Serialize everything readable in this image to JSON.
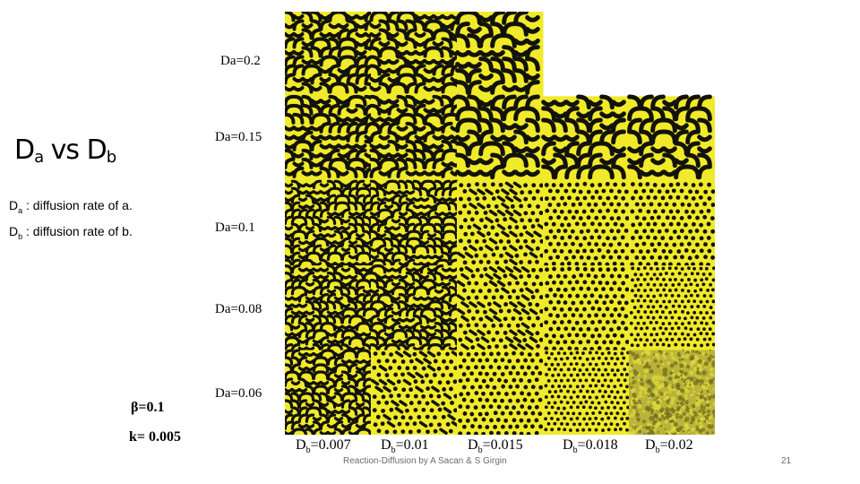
{
  "title": {
    "main": "D",
    "sub_a": "a",
    "vs": " vs D",
    "sub_b": "b"
  },
  "definitions": [
    {
      "symbol": "D",
      "sub": "a",
      "text": " : diffusion rate of a."
    },
    {
      "symbol": "D",
      "sub": "b",
      "text": " : diffusion rate of b."
    }
  ],
  "da_labels": [
    "Da=0.2",
    "Da=0.15",
    "Da=0.1",
    "Da=0.08",
    "Da=0.06"
  ],
  "db_labels": [
    {
      "prefix": "D",
      "sub": "b",
      "value": "=0.007"
    },
    {
      "prefix": "D",
      "sub": "b",
      "value": "=0.01"
    },
    {
      "prefix": "D",
      "sub": "b",
      "value": "=0.015"
    },
    {
      "prefix": "D",
      "sub": "b",
      "value": "=0.018"
    },
    {
      "prefix": "D",
      "sub": "b",
      "value": "=0.02"
    }
  ],
  "parameters": {
    "beta": "β=0.1",
    "k": "k= 0.005"
  },
  "footer": "Reaction-Diffusion by A Sacan & S Girgin",
  "page_number": "21",
  "colors": {
    "background_yellow": "#f0ea2a",
    "pattern_dark": "#12120a",
    "blank": "#ffffff"
  },
  "pattern_grid": [
    [
      "labyrinth",
      "labyrinth",
      "labyrinth-wide",
      "blank",
      "blank"
    ],
    [
      "labyrinth",
      "labyrinth",
      "labyrinth-wide",
      "labyrinth-wide",
      "labyrinth-wide"
    ],
    [
      "labyrinth-fine",
      "labyrinth-fine",
      "spots-mixed",
      "spots",
      "spots"
    ],
    [
      "labyrinth-fine",
      "labyrinth-fine",
      "spots-mixed",
      "spots",
      "spots-fine"
    ],
    [
      "labyrinth-fine",
      "spots-mixed",
      "spots",
      "spots-fine",
      "noise"
    ]
  ]
}
